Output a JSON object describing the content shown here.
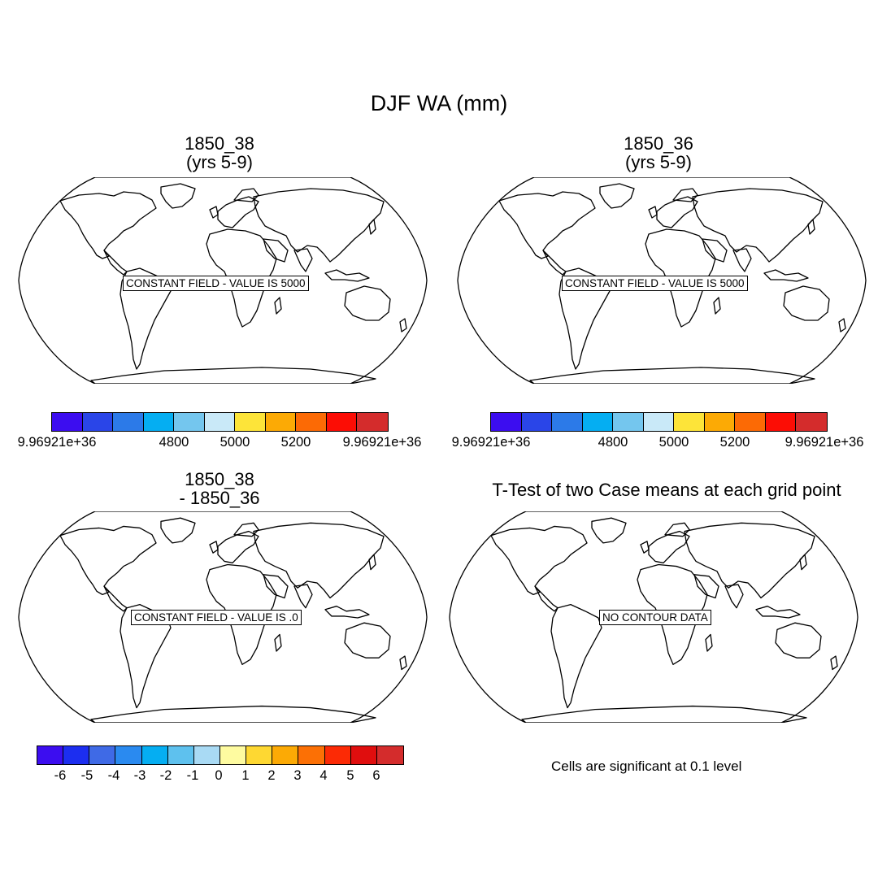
{
  "main_title": "DJF WA (mm)",
  "panels": [
    {
      "title_lines": [
        "1850_38",
        "(yrs 5-9)"
      ],
      "info": "CONSTANT FIELD - VALUE IS 5000"
    },
    {
      "title_lines": [
        "1850_36",
        "(yrs 5-9)"
      ],
      "info": "CONSTANT FIELD - VALUE IS 5000"
    },
    {
      "title_lines": [
        "1850_38",
        "- 1850_36"
      ],
      "info": "CONSTANT FIELD - VALUE IS .0"
    },
    {
      "title_lines": [
        "T-Test of two Case means at each grid point"
      ],
      "info": "NO CONTOUR DATA"
    }
  ],
  "colorbar_abs": {
    "colors": [
      "#3c0df0",
      "#2a45e8",
      "#2c7ae8",
      "#05aef2",
      "#74c6ee",
      "#c9e9f8",
      "#fde439",
      "#fcaa05",
      "#fc6a05",
      "#fc0d05",
      "#d42c2c"
    ],
    "labels": [
      "9.96921e+36",
      "4800",
      "5000",
      "5200",
      "9.96921e+36"
    ]
  },
  "colorbar_diff": {
    "colors": [
      "#3c0df0",
      "#1c2ef0",
      "#3f6ae6",
      "#2a8af0",
      "#05aef2",
      "#5ec1ee",
      "#a9daf4",
      "#fefba0",
      "#fed832",
      "#fcaa05",
      "#fc7005",
      "#fc2a05",
      "#e00e0e",
      "#d42c2c"
    ],
    "labels": [
      "-6",
      "-5",
      "-4",
      "-3",
      "-2",
      "-1",
      "0",
      "1",
      "2",
      "3",
      "4",
      "5",
      "6"
    ]
  },
  "significance_note": "Cells are significant at 0.1 level"
}
